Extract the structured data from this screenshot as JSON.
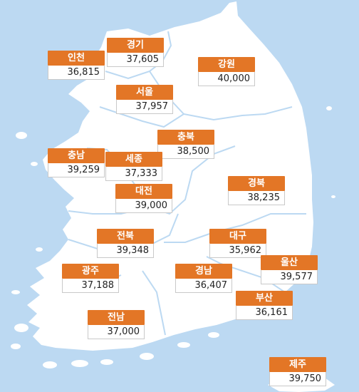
{
  "map": {
    "colors": {
      "sea": "#bcd9f2",
      "land": "#ffffff",
      "border": "#bcd9f2",
      "label_bg": "#e37626",
      "label_text": "#ffffff",
      "value_bg": "#ffffff"
    },
    "regions": [
      {
        "id": "incheon",
        "name": "인천",
        "value": "36,815"
      },
      {
        "id": "gyeonggi",
        "name": "경기",
        "value": "37,605"
      },
      {
        "id": "gangwon",
        "name": "강원",
        "value": "40,000"
      },
      {
        "id": "seoul",
        "name": "서울",
        "value": "37,957"
      },
      {
        "id": "chungbuk",
        "name": "충북",
        "value": "38,500"
      },
      {
        "id": "chungnam",
        "name": "충남",
        "value": "39,259"
      },
      {
        "id": "sejong",
        "name": "세종",
        "value": "37,333"
      },
      {
        "id": "daejeon",
        "name": "대전",
        "value": "39,000"
      },
      {
        "id": "gyeongbuk",
        "name": "경북",
        "value": "38,235"
      },
      {
        "id": "jeonbuk",
        "name": "전북",
        "value": "39,348"
      },
      {
        "id": "daegu",
        "name": "대구",
        "value": "35,962"
      },
      {
        "id": "ulsan",
        "name": "울산",
        "value": "39,577"
      },
      {
        "id": "gwangju",
        "name": "광주",
        "value": "37,188"
      },
      {
        "id": "gyeongnam",
        "name": "경남",
        "value": "36,407"
      },
      {
        "id": "busan",
        "name": "부산",
        "value": "36,161"
      },
      {
        "id": "jeonnam",
        "name": "전남",
        "value": "37,000"
      },
      {
        "id": "jeju",
        "name": "제주",
        "value": "39,750"
      }
    ]
  }
}
